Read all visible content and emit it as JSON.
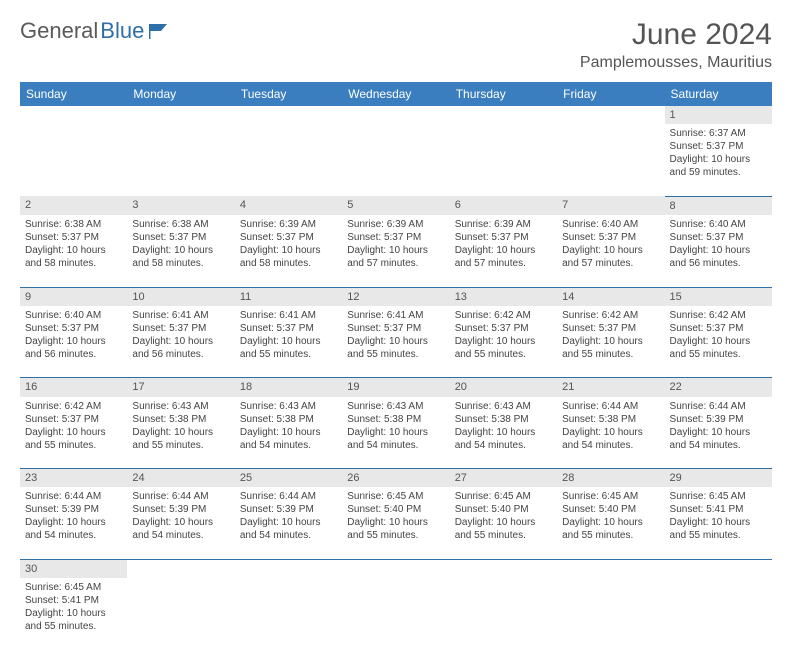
{
  "logo": {
    "text1": "General",
    "text2": "Blue",
    "flag_color": "#2f6fa8"
  },
  "title": "June 2024",
  "location": "Pamplemousses, Mauritius",
  "colors": {
    "header_bg": "#3b7ebf",
    "header_text": "#ffffff",
    "daynum_bg": "#e8e8e8",
    "border": "#2f6fa8",
    "text": "#444444",
    "page_bg": "#ffffff"
  },
  "typography": {
    "title_fontsize": 30,
    "location_fontsize": 16,
    "dayheader_fontsize": 12,
    "daynum_fontsize": 11,
    "cell_fontsize": 10
  },
  "day_headers": [
    "Sunday",
    "Monday",
    "Tuesday",
    "Wednesday",
    "Thursday",
    "Friday",
    "Saturday"
  ],
  "weeks": [
    [
      null,
      null,
      null,
      null,
      null,
      null,
      {
        "n": "1",
        "sr": "6:37 AM",
        "ss": "5:37 PM",
        "dl": "10 hours and 59 minutes."
      }
    ],
    [
      {
        "n": "2",
        "sr": "6:38 AM",
        "ss": "5:37 PM",
        "dl": "10 hours and 58 minutes."
      },
      {
        "n": "3",
        "sr": "6:38 AM",
        "ss": "5:37 PM",
        "dl": "10 hours and 58 minutes."
      },
      {
        "n": "4",
        "sr": "6:39 AM",
        "ss": "5:37 PM",
        "dl": "10 hours and 58 minutes."
      },
      {
        "n": "5",
        "sr": "6:39 AM",
        "ss": "5:37 PM",
        "dl": "10 hours and 57 minutes."
      },
      {
        "n": "6",
        "sr": "6:39 AM",
        "ss": "5:37 PM",
        "dl": "10 hours and 57 minutes."
      },
      {
        "n": "7",
        "sr": "6:40 AM",
        "ss": "5:37 PM",
        "dl": "10 hours and 57 minutes."
      },
      {
        "n": "8",
        "sr": "6:40 AM",
        "ss": "5:37 PM",
        "dl": "10 hours and 56 minutes."
      }
    ],
    [
      {
        "n": "9",
        "sr": "6:40 AM",
        "ss": "5:37 PM",
        "dl": "10 hours and 56 minutes."
      },
      {
        "n": "10",
        "sr": "6:41 AM",
        "ss": "5:37 PM",
        "dl": "10 hours and 56 minutes."
      },
      {
        "n": "11",
        "sr": "6:41 AM",
        "ss": "5:37 PM",
        "dl": "10 hours and 55 minutes."
      },
      {
        "n": "12",
        "sr": "6:41 AM",
        "ss": "5:37 PM",
        "dl": "10 hours and 55 minutes."
      },
      {
        "n": "13",
        "sr": "6:42 AM",
        "ss": "5:37 PM",
        "dl": "10 hours and 55 minutes."
      },
      {
        "n": "14",
        "sr": "6:42 AM",
        "ss": "5:37 PM",
        "dl": "10 hours and 55 minutes."
      },
      {
        "n": "15",
        "sr": "6:42 AM",
        "ss": "5:37 PM",
        "dl": "10 hours and 55 minutes."
      }
    ],
    [
      {
        "n": "16",
        "sr": "6:42 AM",
        "ss": "5:37 PM",
        "dl": "10 hours and 55 minutes."
      },
      {
        "n": "17",
        "sr": "6:43 AM",
        "ss": "5:38 PM",
        "dl": "10 hours and 55 minutes."
      },
      {
        "n": "18",
        "sr": "6:43 AM",
        "ss": "5:38 PM",
        "dl": "10 hours and 54 minutes."
      },
      {
        "n": "19",
        "sr": "6:43 AM",
        "ss": "5:38 PM",
        "dl": "10 hours and 54 minutes."
      },
      {
        "n": "20",
        "sr": "6:43 AM",
        "ss": "5:38 PM",
        "dl": "10 hours and 54 minutes."
      },
      {
        "n": "21",
        "sr": "6:44 AM",
        "ss": "5:38 PM",
        "dl": "10 hours and 54 minutes."
      },
      {
        "n": "22",
        "sr": "6:44 AM",
        "ss": "5:39 PM",
        "dl": "10 hours and 54 minutes."
      }
    ],
    [
      {
        "n": "23",
        "sr": "6:44 AM",
        "ss": "5:39 PM",
        "dl": "10 hours and 54 minutes."
      },
      {
        "n": "24",
        "sr": "6:44 AM",
        "ss": "5:39 PM",
        "dl": "10 hours and 54 minutes."
      },
      {
        "n": "25",
        "sr": "6:44 AM",
        "ss": "5:39 PM",
        "dl": "10 hours and 54 minutes."
      },
      {
        "n": "26",
        "sr": "6:45 AM",
        "ss": "5:40 PM",
        "dl": "10 hours and 55 minutes."
      },
      {
        "n": "27",
        "sr": "6:45 AM",
        "ss": "5:40 PM",
        "dl": "10 hours and 55 minutes."
      },
      {
        "n": "28",
        "sr": "6:45 AM",
        "ss": "5:40 PM",
        "dl": "10 hours and 55 minutes."
      },
      {
        "n": "29",
        "sr": "6:45 AM",
        "ss": "5:41 PM",
        "dl": "10 hours and 55 minutes."
      }
    ],
    [
      {
        "n": "30",
        "sr": "6:45 AM",
        "ss": "5:41 PM",
        "dl": "10 hours and 55 minutes."
      },
      null,
      null,
      null,
      null,
      null,
      null
    ]
  ],
  "labels": {
    "sunrise": "Sunrise:",
    "sunset": "Sunset:",
    "daylight": "Daylight:"
  }
}
